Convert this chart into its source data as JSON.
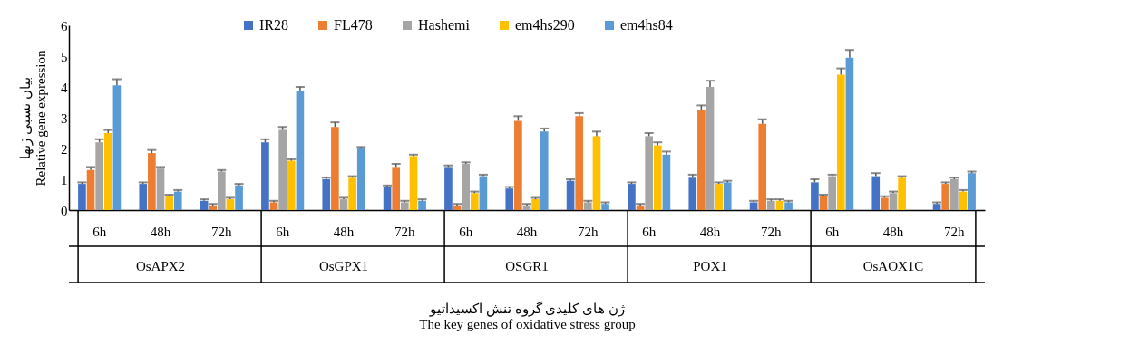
{
  "chart_data": {
    "type": "bar",
    "xlabel": "ژن های کلیدی گروه تنش اکسیداتیو\nThe key genes of oxidative stress group",
    "ylabel": "بیان نسبی ژنها\nRelative gene expression",
    "categories": [
      "6h",
      "48h",
      "72h",
      "6h",
      "48h",
      "72h",
      "6h",
      "48h",
      "72h",
      "6h",
      "48h",
      "72h",
      "6h",
      "48h",
      "72h"
    ],
    "annotations": [
      "OsAPX2",
      "OsGPX1",
      "OSGR1",
      "POX1",
      "OsAOX1C"
    ],
    "series": [
      {
        "name": "IR28",
        "color": "#4472c4",
        "values": [
          0.85,
          0.85,
          0.3,
          2.2,
          1.0,
          0.75,
          1.4,
          0.7,
          0.95,
          0.85,
          1.05,
          0.25,
          0.9,
          1.1,
          0.2
        ],
        "errors": [
          0.05,
          0.05,
          0.05,
          0.1,
          0.05,
          0.05,
          0.05,
          0.05,
          0.05,
          0.05,
          0.1,
          0.05,
          0.1,
          0.1,
          0.05
        ]
      },
      {
        "name": "FL478",
        "color": "#ed7d31",
        "values": [
          1.3,
          1.85,
          0.15,
          0.25,
          2.7,
          1.4,
          0.15,
          2.9,
          3.05,
          0.15,
          3.25,
          2.8,
          0.45,
          0.4,
          0.85
        ],
        "errors": [
          0.1,
          0.1,
          0.05,
          0.05,
          0.15,
          0.1,
          0.05,
          0.15,
          0.1,
          0.05,
          0.15,
          0.15,
          0.05,
          0.05,
          0.05
        ]
      },
      {
        "name": "Hashemi",
        "color": "#a5a5a5",
        "values": [
          2.2,
          1.35,
          1.25,
          2.6,
          0.35,
          0.25,
          1.5,
          0.15,
          0.25,
          2.4,
          4.0,
          0.3,
          1.1,
          0.55,
          1.0
        ],
        "errors": [
          0.1,
          0.05,
          0.05,
          0.1,
          0.05,
          0.05,
          0.05,
          0.05,
          0.05,
          0.1,
          0.2,
          0.05,
          0.05,
          0.05,
          0.05
        ]
      },
      {
        "name": "em4hs290",
        "color": "#ffc000",
        "values": [
          2.5,
          0.45,
          0.35,
          1.6,
          1.05,
          1.75,
          0.55,
          0.35,
          2.4,
          2.1,
          0.85,
          0.3,
          4.4,
          1.05,
          0.6
        ],
        "errors": [
          0.1,
          0.05,
          0.05,
          0.05,
          0.05,
          0.05,
          0.05,
          0.05,
          0.15,
          0.1,
          0.05,
          0.05,
          0.2,
          0.05,
          0.05
        ]
      },
      {
        "name": "em4hs84",
        "color": "#5b9bd5",
        "values": [
          4.05,
          0.6,
          0.8,
          3.85,
          2.0,
          0.3,
          1.1,
          2.55,
          0.2,
          1.8,
          0.9,
          0.25,
          4.95,
          null,
          1.2
        ],
        "errors": [
          0.2,
          0.05,
          0.05,
          0.15,
          0.05,
          0.05,
          0.05,
          0.1,
          0.05,
          0.1,
          0.05,
          0.05,
          0.25,
          null,
          0.05
        ]
      }
    ],
    "ylim": [
      0,
      6
    ],
    "yticks": [
      0,
      1,
      2,
      3,
      4,
      5,
      6
    ],
    "grid": false,
    "legend": "top"
  }
}
